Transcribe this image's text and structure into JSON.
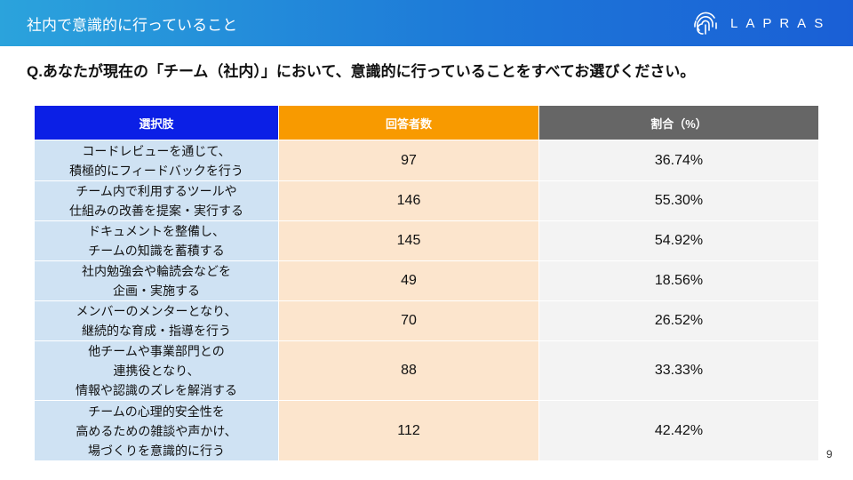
{
  "header": {
    "title": "社内で意識的に行っていること",
    "logo": "LAPRAS"
  },
  "question": "Q.あなたが現在の「チーム（社内）」において、意識的に行っていることをすべてお選びください。",
  "table": {
    "columns": [
      "選択肢",
      "回答者数",
      "割合（%）"
    ],
    "rows": [
      [
        "コードレビューを通じて、\n積極的にフィードバックを行う",
        "97",
        "36.74%"
      ],
      [
        "チーム内で利用するツールや\n仕組みの改善を提案・実行する",
        "146",
        "55.30%"
      ],
      [
        "ドキュメントを整備し、\nチームの知識を蓄積する",
        "145",
        "54.92%"
      ],
      [
        "社内勉強会や輪読会などを\n企画・実施する",
        "49",
        "18.56%"
      ],
      [
        "メンバーのメンターとなり、\n継続的な育成・指導を行う",
        "70",
        "26.52%"
      ],
      [
        "他チームや事業部門との\n連携役となり、\n情報や認識のズレを解消する",
        "88",
        "33.33%"
      ],
      [
        "チームの心理的安全性を\n高めるための雑談や声かけ、\n場づくりを意識的に行う",
        "112",
        "42.42%"
      ]
    ]
  },
  "page_number": "9"
}
